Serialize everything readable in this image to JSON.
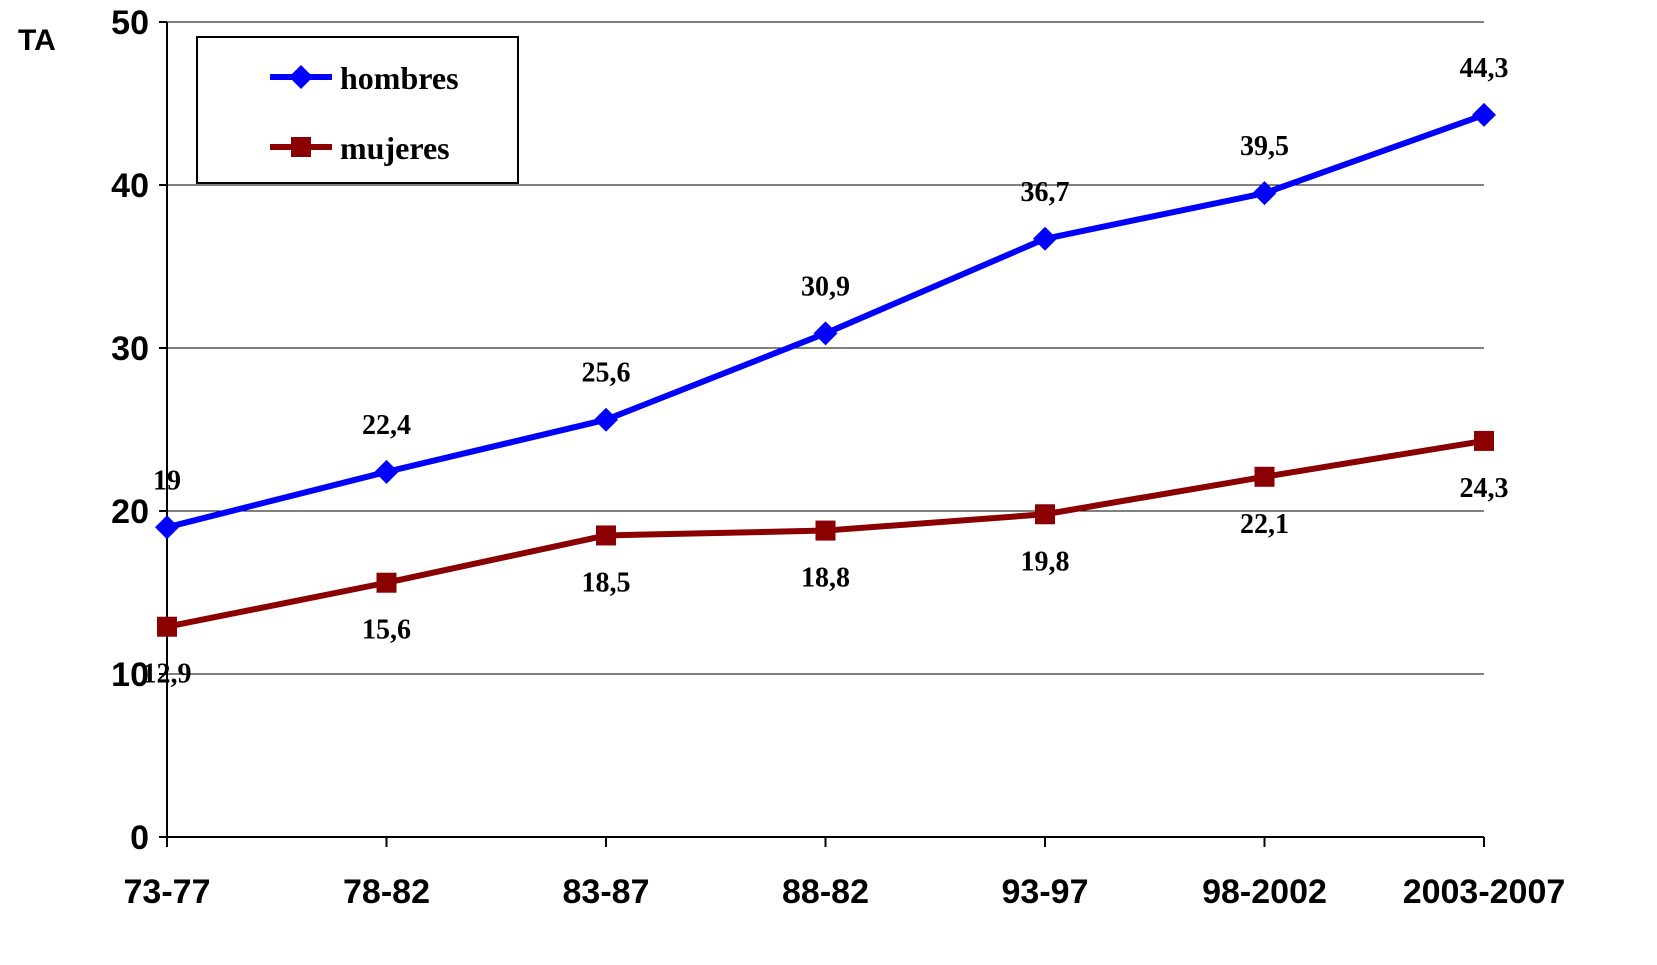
{
  "chart_data": {
    "type": "line",
    "ylabel": "TA",
    "xlabel": "",
    "ylim": [
      0,
      50
    ],
    "yticks": [
      0,
      10,
      20,
      30,
      40,
      50
    ],
    "grid": true,
    "legend_position": "top-left",
    "categories": [
      "73-77",
      "78-82",
      "83-87",
      "88-82",
      "93-97",
      "98-2002",
      "2003-2007"
    ],
    "series": [
      {
        "name": "hombres",
        "color": "#0000ff",
        "marker": "diamond",
        "values": [
          19,
          22.4,
          25.6,
          30.9,
          36.7,
          39.5,
          44.3
        ],
        "labels": [
          "19",
          "22,4",
          "25,6",
          "30,9",
          "36,7",
          "39,5",
          "44,3"
        ],
        "label_position": "above"
      },
      {
        "name": "mujeres",
        "color": "#8b0000",
        "marker": "square",
        "values": [
          12.9,
          15.6,
          18.5,
          18.8,
          19.8,
          22.1,
          24.3
        ],
        "labels": [
          "12,9",
          "15,6",
          "18,5",
          "18,8",
          "19,8",
          "22,1",
          "24,3"
        ],
        "label_position": "below"
      }
    ]
  }
}
